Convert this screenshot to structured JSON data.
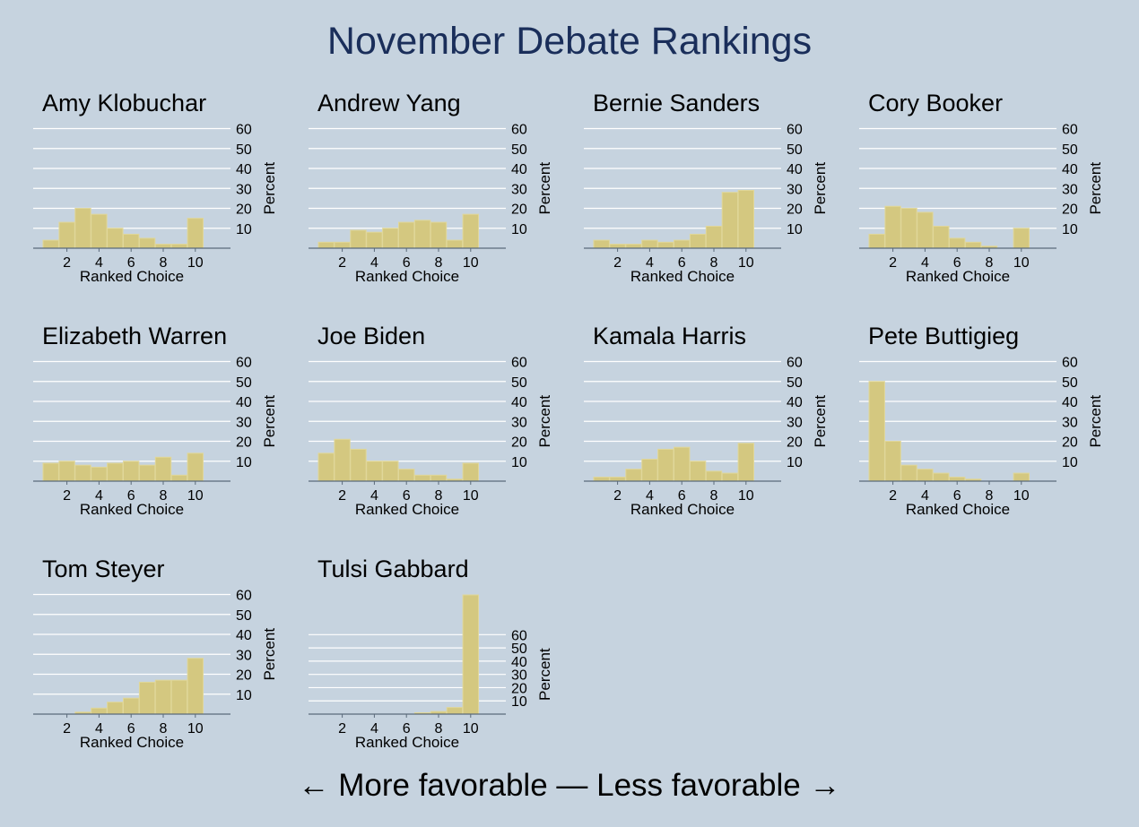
{
  "title": "November Debate Rankings",
  "footer": "← More favorable — Less favorable →",
  "colors": {
    "background": "#c6d3df",
    "bar_fill": "#d4c880",
    "bar_stroke": "#e0d79a",
    "grid": "#ffffff",
    "axis": "#5a6a7a",
    "title": "#1a2e5a"
  },
  "chart_data": [
    {
      "type": "bar",
      "title": "Amy Klobuchar",
      "xlabel": "Ranked Choice",
      "ylabel": "Percent",
      "x": [
        1,
        2,
        3,
        4,
        5,
        6,
        7,
        8,
        9,
        10
      ],
      "values": [
        4,
        13,
        20,
        17,
        10,
        7,
        5,
        2,
        2,
        15
      ],
      "xticks": [
        2,
        4,
        6,
        8,
        10
      ],
      "yticks": [
        10,
        20,
        30,
        40,
        50,
        60
      ],
      "ylim": [
        0,
        60
      ]
    },
    {
      "type": "bar",
      "title": "Andrew Yang",
      "xlabel": "Ranked Choice",
      "ylabel": "Percent",
      "x": [
        1,
        2,
        3,
        4,
        5,
        6,
        7,
        8,
        9,
        10
      ],
      "values": [
        3,
        3,
        9,
        8,
        10,
        13,
        14,
        13,
        4,
        17
      ],
      "xticks": [
        2,
        4,
        6,
        8,
        10
      ],
      "yticks": [
        10,
        20,
        30,
        40,
        50,
        60
      ],
      "ylim": [
        0,
        60
      ]
    },
    {
      "type": "bar",
      "title": "Bernie Sanders",
      "xlabel": "Ranked Choice",
      "ylabel": "Percent",
      "x": [
        1,
        2,
        3,
        4,
        5,
        6,
        7,
        8,
        9,
        10
      ],
      "values": [
        4,
        2,
        2,
        4,
        3,
        4,
        7,
        11,
        28,
        29
      ],
      "xticks": [
        2,
        4,
        6,
        8,
        10
      ],
      "yticks": [
        10,
        20,
        30,
        40,
        50,
        60
      ],
      "ylim": [
        0,
        60
      ]
    },
    {
      "type": "bar",
      "title": "Cory Booker",
      "xlabel": "Ranked Choice",
      "ylabel": "Percent",
      "x": [
        1,
        2,
        3,
        4,
        5,
        6,
        7,
        8,
        9,
        10
      ],
      "values": [
        7,
        21,
        20,
        18,
        11,
        5,
        3,
        1,
        0,
        10
      ],
      "xticks": [
        2,
        4,
        6,
        8,
        10
      ],
      "yticks": [
        10,
        20,
        30,
        40,
        50,
        60
      ],
      "ylim": [
        0,
        60
      ]
    },
    {
      "type": "bar",
      "title": "Elizabeth Warren",
      "xlabel": "Ranked Choice",
      "ylabel": "Percent",
      "x": [
        1,
        2,
        3,
        4,
        5,
        6,
        7,
        8,
        9,
        10
      ],
      "values": [
        9,
        10,
        8,
        7,
        9,
        10,
        8,
        12,
        3,
        14
      ],
      "xticks": [
        2,
        4,
        6,
        8,
        10
      ],
      "yticks": [
        10,
        20,
        30,
        40,
        50,
        60
      ],
      "ylim": [
        0,
        60
      ]
    },
    {
      "type": "bar",
      "title": "Joe Biden",
      "xlabel": "Ranked Choice",
      "ylabel": "Percent",
      "x": [
        1,
        2,
        3,
        4,
        5,
        6,
        7,
        8,
        9,
        10
      ],
      "values": [
        14,
        21,
        16,
        10,
        10,
        6,
        3,
        3,
        1,
        9
      ],
      "xticks": [
        2,
        4,
        6,
        8,
        10
      ],
      "yticks": [
        10,
        20,
        30,
        40,
        50,
        60
      ],
      "ylim": [
        0,
        60
      ]
    },
    {
      "type": "bar",
      "title": "Kamala Harris",
      "xlabel": "Ranked Choice",
      "ylabel": "Percent",
      "x": [
        1,
        2,
        3,
        4,
        5,
        6,
        7,
        8,
        9,
        10
      ],
      "values": [
        2,
        2,
        6,
        11,
        16,
        17,
        10,
        5,
        4,
        19
      ],
      "xticks": [
        2,
        4,
        6,
        8,
        10
      ],
      "yticks": [
        10,
        20,
        30,
        40,
        50,
        60
      ],
      "ylim": [
        0,
        60
      ]
    },
    {
      "type": "bar",
      "title": "Pete Buttigieg",
      "xlabel": "Ranked Choice",
      "ylabel": "Percent",
      "x": [
        1,
        2,
        3,
        4,
        5,
        6,
        7,
        8,
        9,
        10
      ],
      "values": [
        50,
        20,
        8,
        6,
        4,
        2,
        1,
        0,
        0,
        4
      ],
      "xticks": [
        2,
        4,
        6,
        8,
        10
      ],
      "yticks": [
        10,
        20,
        30,
        40,
        50,
        60
      ],
      "ylim": [
        0,
        60
      ]
    },
    {
      "type": "bar",
      "title": "Tom Steyer",
      "xlabel": "Ranked Choice",
      "ylabel": "Percent",
      "x": [
        1,
        2,
        3,
        4,
        5,
        6,
        7,
        8,
        9,
        10
      ],
      "values": [
        0,
        0,
        1,
        3,
        6,
        8,
        16,
        17,
        17,
        28
      ],
      "xticks": [
        2,
        4,
        6,
        8,
        10
      ],
      "yticks": [
        10,
        20,
        30,
        40,
        50,
        60
      ],
      "ylim": [
        0,
        60
      ]
    },
    {
      "type": "bar",
      "title": "Tulsi Gabbard",
      "xlabel": "Ranked Choice",
      "ylabel": "Percent",
      "x": [
        1,
        2,
        3,
        4,
        5,
        6,
        7,
        8,
        9,
        10
      ],
      "values": [
        0,
        0,
        0,
        0,
        0,
        0,
        1,
        2,
        5,
        90
      ],
      "xticks": [
        2,
        4,
        6,
        8,
        10
      ],
      "yticks": [
        10,
        20,
        30,
        40,
        50,
        60
      ],
      "ylim": [
        0,
        90
      ]
    }
  ]
}
